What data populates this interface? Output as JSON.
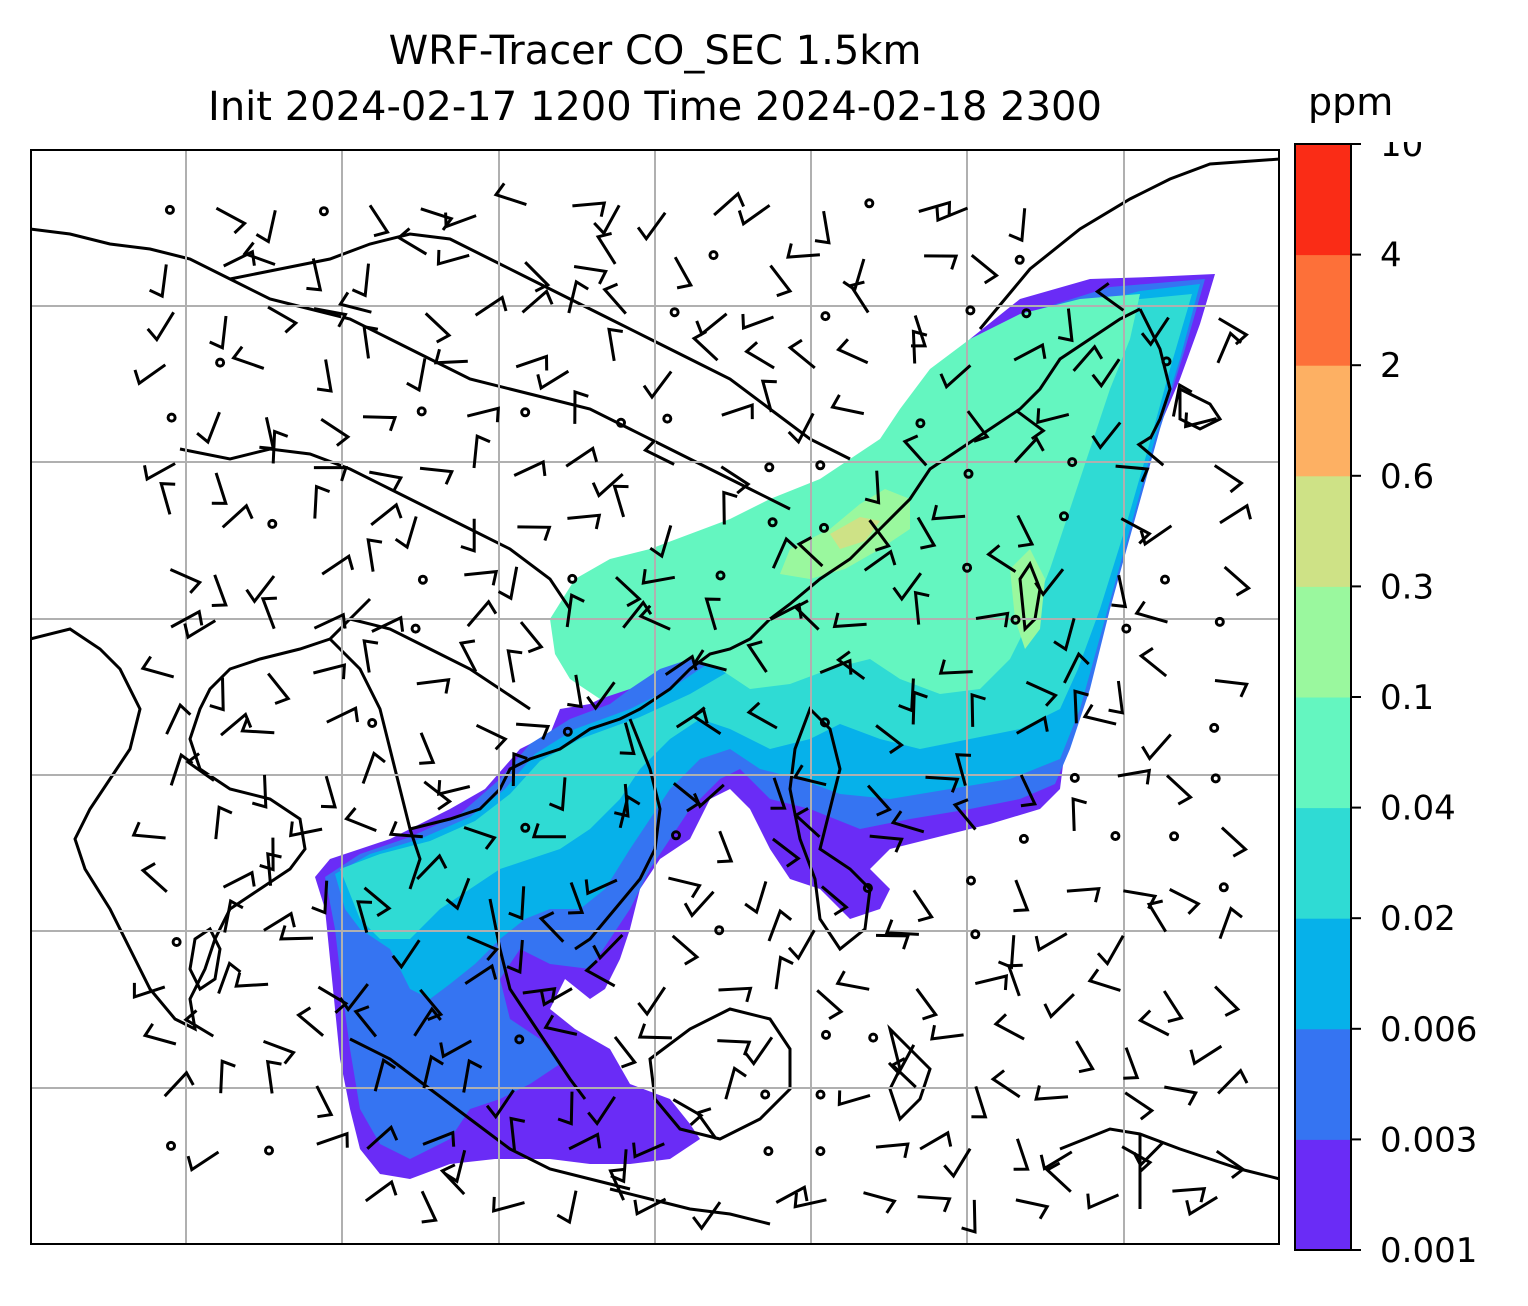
{
  "title": {
    "line1": "WRF-Tracer CO_SEC 1.5km",
    "line2": "Init 2024-02-17 1200 Time 2024-02-18 2300"
  },
  "colorbar": {
    "unit": "ppm",
    "levels": [
      "0.001",
      "0.003",
      "0.006",
      "0.02",
      "0.04",
      "0.1",
      "0.3",
      "0.6",
      "2",
      "4",
      "10"
    ],
    "colors": [
      "#6a2cf6",
      "#3574f2",
      "#06b1ea",
      "#2fdbd4",
      "#64f6c0",
      "#9af89e",
      "#cee286",
      "#fdb063",
      "#fd7039",
      "#fa2c16"
    ]
  },
  "map": {
    "field": "CO_SEC tracer concentration at 1.5km with wind barbs",
    "grid_color": "#b0b0b0",
    "coast_color": "#000000"
  }
}
